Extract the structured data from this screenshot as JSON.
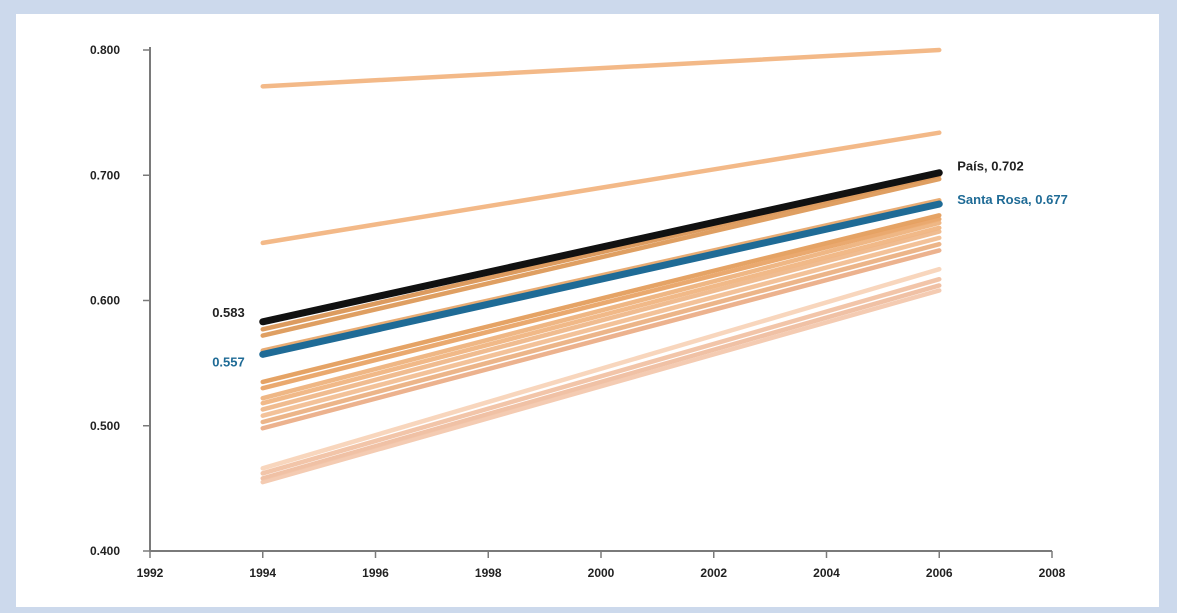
{
  "chart_data": {
    "type": "line",
    "title": "",
    "xlabel": "",
    "ylabel": "",
    "xlim": [
      1992,
      2008
    ],
    "ylim": [
      0.4,
      0.8
    ],
    "x_ticks": [
      "1992",
      "1994",
      "1996",
      "1998",
      "2000",
      "2002",
      "2004",
      "2006",
      "2008"
    ],
    "y_ticks": [
      "0.400",
      "0.500",
      "0.600",
      "0.700",
      "0.800"
    ],
    "grid": false,
    "legend": "none",
    "x": [
      1994,
      2006
    ],
    "background_series": [
      {
        "values": [
          0.771,
          0.8
        ],
        "color": "#f2b27c"
      },
      {
        "values": [
          0.646,
          0.734
        ],
        "color": "#f2b27c"
      },
      {
        "values": [
          0.577,
          0.7
        ],
        "color": "#d9914e"
      },
      {
        "values": [
          0.572,
          0.697
        ],
        "color": "#dc9552"
      },
      {
        "values": [
          0.56,
          0.68
        ],
        "color": "#e6a466"
      },
      {
        "values": [
          0.535,
          0.668
        ],
        "color": "#e39a55"
      },
      {
        "values": [
          0.53,
          0.665
        ],
        "color": "#e8a060"
      },
      {
        "values": [
          0.522,
          0.662
        ],
        "color": "#eeb078"
      },
      {
        "values": [
          0.518,
          0.658
        ],
        "color": "#f0b27c"
      },
      {
        "values": [
          0.513,
          0.655
        ],
        "color": "#efb585"
      },
      {
        "values": [
          0.508,
          0.65
        ],
        "color": "#f2bc8e"
      },
      {
        "values": [
          0.503,
          0.645
        ],
        "color": "#ebad7d"
      },
      {
        "values": [
          0.498,
          0.64
        ],
        "color": "#eaaa82"
      },
      {
        "values": [
          0.466,
          0.625
        ],
        "color": "#f8d2b6"
      },
      {
        "values": [
          0.462,
          0.617
        ],
        "color": "#f1bfa0"
      },
      {
        "values": [
          0.458,
          0.612
        ],
        "color": "#efbb9c"
      },
      {
        "values": [
          0.455,
          0.608
        ],
        "color": "#f3c6aa"
      }
    ],
    "highlight_series": [
      {
        "name": "Santa Rosa",
        "values": [
          0.557,
          0.677
        ],
        "color": "#1f6b96"
      },
      {
        "name": "País",
        "values": [
          0.583,
          0.702
        ],
        "color": "#111111"
      }
    ],
    "annotations": {
      "pais_start": "0.583",
      "santa_rosa_start": "0.557",
      "pais_end": "País, 0.702",
      "santa_rosa_end": "Santa Rosa, 0.677"
    },
    "colors": {
      "pais": "#111111",
      "santa_rosa": "#1f6b96",
      "axis": "#7a7a7a",
      "background": "#ccd9ec"
    }
  }
}
